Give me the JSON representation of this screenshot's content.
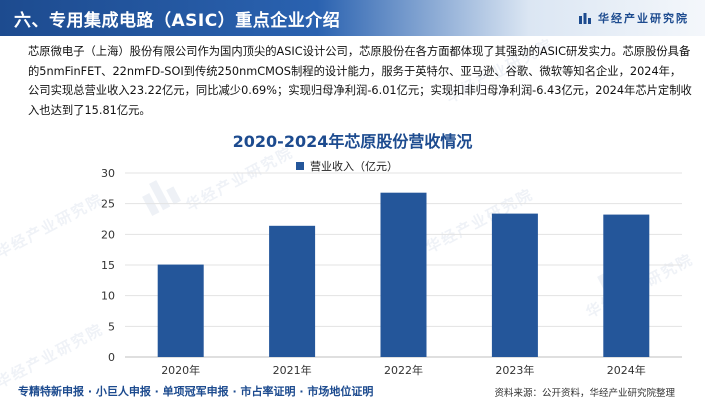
{
  "header": {
    "title": "六、专用集成电路（ASIC）重点企业介绍",
    "brand": "华经产业研究院"
  },
  "intro": {
    "text": "芯原微电子（上海）股份有限公司作为国内顶尖的ASIC设计公司，芯原股份在各方面都体现了其强劲的ASIC研发实力。芯原股份具备的5nmFinFET、22nmFD-SOI到传统250nmCMOS制程的设计能力，服务于英特尔、亚马逊、谷歌、微软等知名企业，2024年，公司实现总营业收入23.22亿元，同比减少0.69%；实现归母净利润-6.01亿元；实现扣非归母净利润-6.43亿元，2024年芯片定制收入也达到了15.81亿元。"
  },
  "chart_data": {
    "type": "bar",
    "title": "2020-2024年芯原股份营收情况",
    "categories": [
      "2020年",
      "2021年",
      "2022年",
      "2023年",
      "2024年"
    ],
    "series": [
      {
        "name": "营业收入（亿元）",
        "values": [
          15.07,
          21.39,
          26.79,
          23.38,
          23.22
        ],
        "color": "#24569a"
      }
    ],
    "ylim": [
      0,
      30
    ],
    "yticks": [
      0,
      5,
      10,
      15,
      20,
      25,
      30
    ],
    "grid": true,
    "legend_position": "top"
  },
  "footer": {
    "left": "专精特新申报 · 小巨人申报 · 单项冠军申报 · 市占率证明 · 市场地位证明",
    "right": "资料来源：公开资料，华经产业研究院整理"
  },
  "colors": {
    "header_blue": "#1d4b8f",
    "bar": "#24569a"
  }
}
